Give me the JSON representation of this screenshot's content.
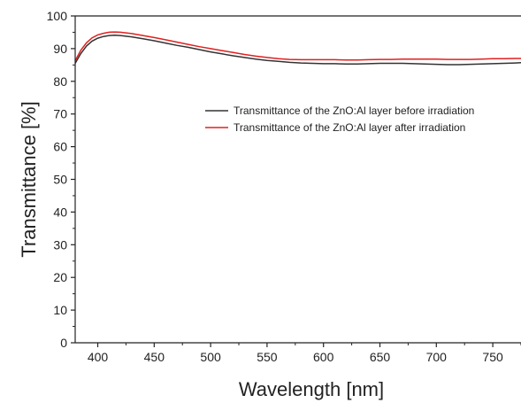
{
  "chart_data": {
    "type": "line",
    "title": "",
    "xlabel": "Wavelength [nm]",
    "ylabel": "Transmittance [%]",
    "xlim": [
      380,
      775
    ],
    "ylim": [
      0,
      100
    ],
    "x_ticks": [
      400,
      450,
      500,
      550,
      600,
      650,
      700,
      750
    ],
    "y_ticks": [
      0,
      10,
      20,
      30,
      40,
      50,
      60,
      70,
      80,
      90,
      100
    ],
    "grid": false,
    "legend_position": "center-right",
    "series": [
      {
        "name": "Transmittance of the ZnO:Al layer before irradiation",
        "color": "#333333",
        "x": [
          380,
          385,
          390,
          395,
          400,
          405,
          410,
          415,
          420,
          430,
          440,
          450,
          460,
          470,
          480,
          490,
          500,
          510,
          520,
          530,
          540,
          550,
          560,
          570,
          580,
          590,
          600,
          610,
          620,
          630,
          640,
          650,
          660,
          670,
          680,
          690,
          700,
          710,
          720,
          730,
          740,
          750,
          760,
          770,
          775
        ],
        "y": [
          85.5,
          88.5,
          90.8,
          92.3,
          93.2,
          93.7,
          94.0,
          94.1,
          94.0,
          93.6,
          93.0,
          92.4,
          91.7,
          91.0,
          90.4,
          89.7,
          89.0,
          88.4,
          87.8,
          87.3,
          86.8,
          86.4,
          86.1,
          85.8,
          85.6,
          85.5,
          85.4,
          85.4,
          85.3,
          85.3,
          85.4,
          85.5,
          85.5,
          85.5,
          85.4,
          85.3,
          85.2,
          85.1,
          85.1,
          85.2,
          85.3,
          85.4,
          85.5,
          85.6,
          85.7
        ]
      },
      {
        "name": "Transmittance of the ZnO:Al layer after irradiation",
        "color": "#e02020",
        "x": [
          380,
          385,
          390,
          395,
          400,
          405,
          410,
          415,
          420,
          430,
          440,
          450,
          460,
          470,
          480,
          490,
          500,
          510,
          520,
          530,
          540,
          550,
          560,
          570,
          580,
          590,
          600,
          610,
          620,
          630,
          640,
          650,
          660,
          670,
          680,
          690,
          700,
          710,
          720,
          730,
          740,
          750,
          760,
          770,
          775
        ],
        "y": [
          86.3,
          89.5,
          91.8,
          93.3,
          94.2,
          94.7,
          95.0,
          95.1,
          95.0,
          94.6,
          94.0,
          93.4,
          92.7,
          92.0,
          91.3,
          90.6,
          90.0,
          89.4,
          88.8,
          88.2,
          87.7,
          87.3,
          86.9,
          86.7,
          86.6,
          86.6,
          86.6,
          86.6,
          86.5,
          86.5,
          86.6,
          86.7,
          86.7,
          86.8,
          86.8,
          86.8,
          86.8,
          86.7,
          86.7,
          86.7,
          86.8,
          86.9,
          86.9,
          87.0,
          87.0
        ]
      }
    ]
  }
}
